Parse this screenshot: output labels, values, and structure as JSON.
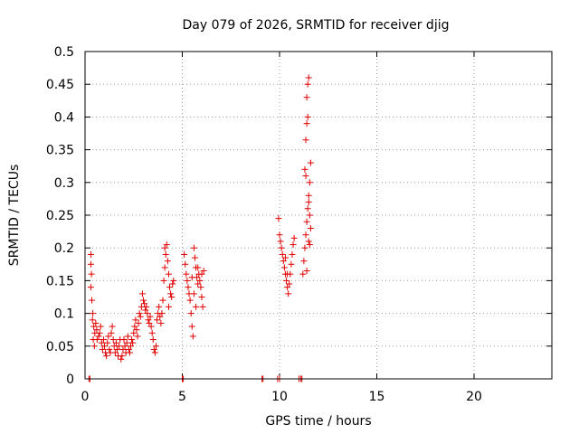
{
  "chart_data": {
    "type": "scatter",
    "title": "Day 079 of 2026, SRMTID for receiver djig",
    "xlabel": "GPS time / hours",
    "ylabel": "SRMTID / TECUs",
    "xlim": [
      0,
      24
    ],
    "ylim": [
      0,
      0.5
    ],
    "grid": true,
    "marker": "+",
    "color": "#e00000",
    "x_ticks": [
      0,
      5,
      10,
      15,
      20
    ],
    "x_tick_labels": [
      "0",
      "5",
      "10",
      "15",
      "20"
    ],
    "y_ticks": [
      0,
      0.05,
      0.1,
      0.15,
      0.2,
      0.25,
      0.3,
      0.35,
      0.4,
      0.45,
      0.5
    ],
    "y_tick_labels": [
      "0",
      "0.05",
      "0.1",
      "0.15",
      "0.2",
      "0.25",
      "0.3",
      "0.35",
      "0.4",
      "0.45",
      "0.5"
    ],
    "series": [
      {
        "name": "SRMTID",
        "points": [
          [
            0.2,
            0.0
          ],
          [
            0.25,
            0.0
          ],
          [
            9.1,
            0.0
          ],
          [
            9.15,
            0.0
          ],
          [
            9.9,
            0.0
          ],
          [
            10.0,
            0.0
          ],
          [
            11.0,
            0.0
          ],
          [
            11.1,
            0.0
          ],
          [
            11.15,
            0.0
          ],
          [
            5.0,
            0.0
          ],
          [
            5.05,
            0.0
          ],
          [
            0.3,
            0.19
          ],
          [
            0.3,
            0.175
          ],
          [
            0.33,
            0.16
          ],
          [
            0.3,
            0.14
          ],
          [
            0.35,
            0.12
          ],
          [
            0.4,
            0.1
          ],
          [
            0.38,
            0.09
          ],
          [
            0.45,
            0.08
          ],
          [
            0.5,
            0.07
          ],
          [
            0.42,
            0.06
          ],
          [
            0.55,
            0.085
          ],
          [
            0.6,
            0.075
          ],
          [
            0.48,
            0.05
          ],
          [
            0.62,
            0.06
          ],
          [
            0.7,
            0.065
          ],
          [
            0.75,
            0.07
          ],
          [
            0.8,
            0.08
          ],
          [
            0.85,
            0.055
          ],
          [
            0.9,
            0.045
          ],
          [
            0.95,
            0.06
          ],
          [
            1.0,
            0.05
          ],
          [
            1.05,
            0.04
          ],
          [
            1.1,
            0.035
          ],
          [
            1.15,
            0.055
          ],
          [
            1.2,
            0.065
          ],
          [
            1.25,
            0.045
          ],
          [
            1.3,
            0.04
          ],
          [
            1.35,
            0.07
          ],
          [
            1.4,
            0.08
          ],
          [
            1.45,
            0.06
          ],
          [
            1.5,
            0.05
          ],
          [
            1.55,
            0.04
          ],
          [
            1.6,
            0.055
          ],
          [
            1.65,
            0.045
          ],
          [
            1.7,
            0.035
          ],
          [
            1.75,
            0.05
          ],
          [
            1.8,
            0.06
          ],
          [
            1.85,
            0.03
          ],
          [
            1.9,
            0.035
          ],
          [
            1.95,
            0.045
          ],
          [
            2.0,
            0.06
          ],
          [
            2.05,
            0.05
          ],
          [
            2.1,
            0.04
          ],
          [
            2.15,
            0.055
          ],
          [
            2.2,
            0.065
          ],
          [
            2.25,
            0.045
          ],
          [
            2.3,
            0.04
          ],
          [
            2.35,
            0.05
          ],
          [
            2.4,
            0.06
          ],
          [
            2.45,
            0.055
          ],
          [
            2.5,
            0.07
          ],
          [
            2.55,
            0.08
          ],
          [
            2.6,
            0.09
          ],
          [
            2.65,
            0.075
          ],
          [
            2.7,
            0.065
          ],
          [
            2.75,
            0.085
          ],
          [
            2.8,
            0.1
          ],
          [
            2.85,
            0.095
          ],
          [
            2.9,
            0.11
          ],
          [
            2.95,
            0.13
          ],
          [
            3.0,
            0.12
          ],
          [
            3.05,
            0.115
          ],
          [
            3.1,
            0.105
          ],
          [
            3.15,
            0.11
          ],
          [
            3.2,
            0.1
          ],
          [
            3.25,
            0.09
          ],
          [
            3.3,
            0.085
          ],
          [
            3.35,
            0.095
          ],
          [
            3.4,
            0.08
          ],
          [
            3.45,
            0.07
          ],
          [
            3.5,
            0.06
          ],
          [
            3.55,
            0.045
          ],
          [
            3.6,
            0.04
          ],
          [
            3.65,
            0.05
          ],
          [
            3.7,
            0.09
          ],
          [
            3.75,
            0.1
          ],
          [
            3.8,
            0.11
          ],
          [
            3.85,
            0.095
          ],
          [
            3.9,
            0.085
          ],
          [
            3.95,
            0.1
          ],
          [
            4.0,
            0.12
          ],
          [
            4.05,
            0.15
          ],
          [
            4.1,
            0.17
          ],
          [
            4.15,
            0.19
          ],
          [
            4.2,
            0.205
          ],
          [
            4.1,
            0.2
          ],
          [
            4.25,
            0.18
          ],
          [
            4.3,
            0.16
          ],
          [
            4.35,
            0.14
          ],
          [
            4.4,
            0.13
          ],
          [
            4.45,
            0.125
          ],
          [
            4.5,
            0.145
          ],
          [
            4.55,
            0.15
          ],
          [
            4.3,
            0.11
          ],
          [
            5.1,
            0.19
          ],
          [
            5.15,
            0.175
          ],
          [
            5.2,
            0.16
          ],
          [
            5.25,
            0.15
          ],
          [
            5.3,
            0.14
          ],
          [
            5.35,
            0.13
          ],
          [
            5.4,
            0.12
          ],
          [
            5.45,
            0.1
          ],
          [
            5.5,
            0.08
          ],
          [
            5.55,
            0.065
          ],
          [
            5.6,
            0.2
          ],
          [
            5.65,
            0.185
          ],
          [
            5.7,
            0.17
          ],
          [
            5.75,
            0.155
          ],
          [
            5.8,
            0.145
          ],
          [
            5.85,
            0.16
          ],
          [
            5.9,
            0.15
          ],
          [
            5.95,
            0.14
          ],
          [
            6.0,
            0.125
          ],
          [
            6.05,
            0.11
          ],
          [
            6.1,
            0.165
          ],
          [
            5.5,
            0.155
          ],
          [
            5.6,
            0.13
          ],
          [
            5.7,
            0.11
          ],
          [
            5.8,
            0.17
          ],
          [
            6.0,
            0.16
          ],
          [
            9.95,
            0.245
          ],
          [
            10.0,
            0.22
          ],
          [
            10.05,
            0.21
          ],
          [
            10.1,
            0.2
          ],
          [
            10.15,
            0.19
          ],
          [
            10.2,
            0.18
          ],
          [
            10.25,
            0.17
          ],
          [
            10.3,
            0.16
          ],
          [
            10.35,
            0.15
          ],
          [
            10.4,
            0.14
          ],
          [
            10.45,
            0.13
          ],
          [
            10.5,
            0.145
          ],
          [
            10.55,
            0.16
          ],
          [
            10.6,
            0.175
          ],
          [
            10.65,
            0.19
          ],
          [
            10.7,
            0.205
          ],
          [
            10.75,
            0.215
          ],
          [
            10.4,
            0.16
          ],
          [
            10.3,
            0.185
          ],
          [
            11.2,
            0.16
          ],
          [
            11.25,
            0.18
          ],
          [
            11.3,
            0.2
          ],
          [
            11.35,
            0.22
          ],
          [
            11.4,
            0.24
          ],
          [
            11.45,
            0.26
          ],
          [
            11.5,
            0.28
          ],
          [
            11.55,
            0.3
          ],
          [
            11.6,
            0.33
          ],
          [
            11.35,
            0.365
          ],
          [
            11.4,
            0.39
          ],
          [
            11.45,
            0.4
          ],
          [
            11.4,
            0.43
          ],
          [
            11.45,
            0.45
          ],
          [
            11.5,
            0.46
          ],
          [
            11.3,
            0.32
          ],
          [
            11.35,
            0.31
          ],
          [
            11.5,
            0.27
          ],
          [
            11.55,
            0.25
          ],
          [
            11.6,
            0.23
          ],
          [
            11.5,
            0.21
          ],
          [
            11.55,
            0.205
          ],
          [
            11.4,
            0.165
          ]
        ]
      }
    ]
  }
}
